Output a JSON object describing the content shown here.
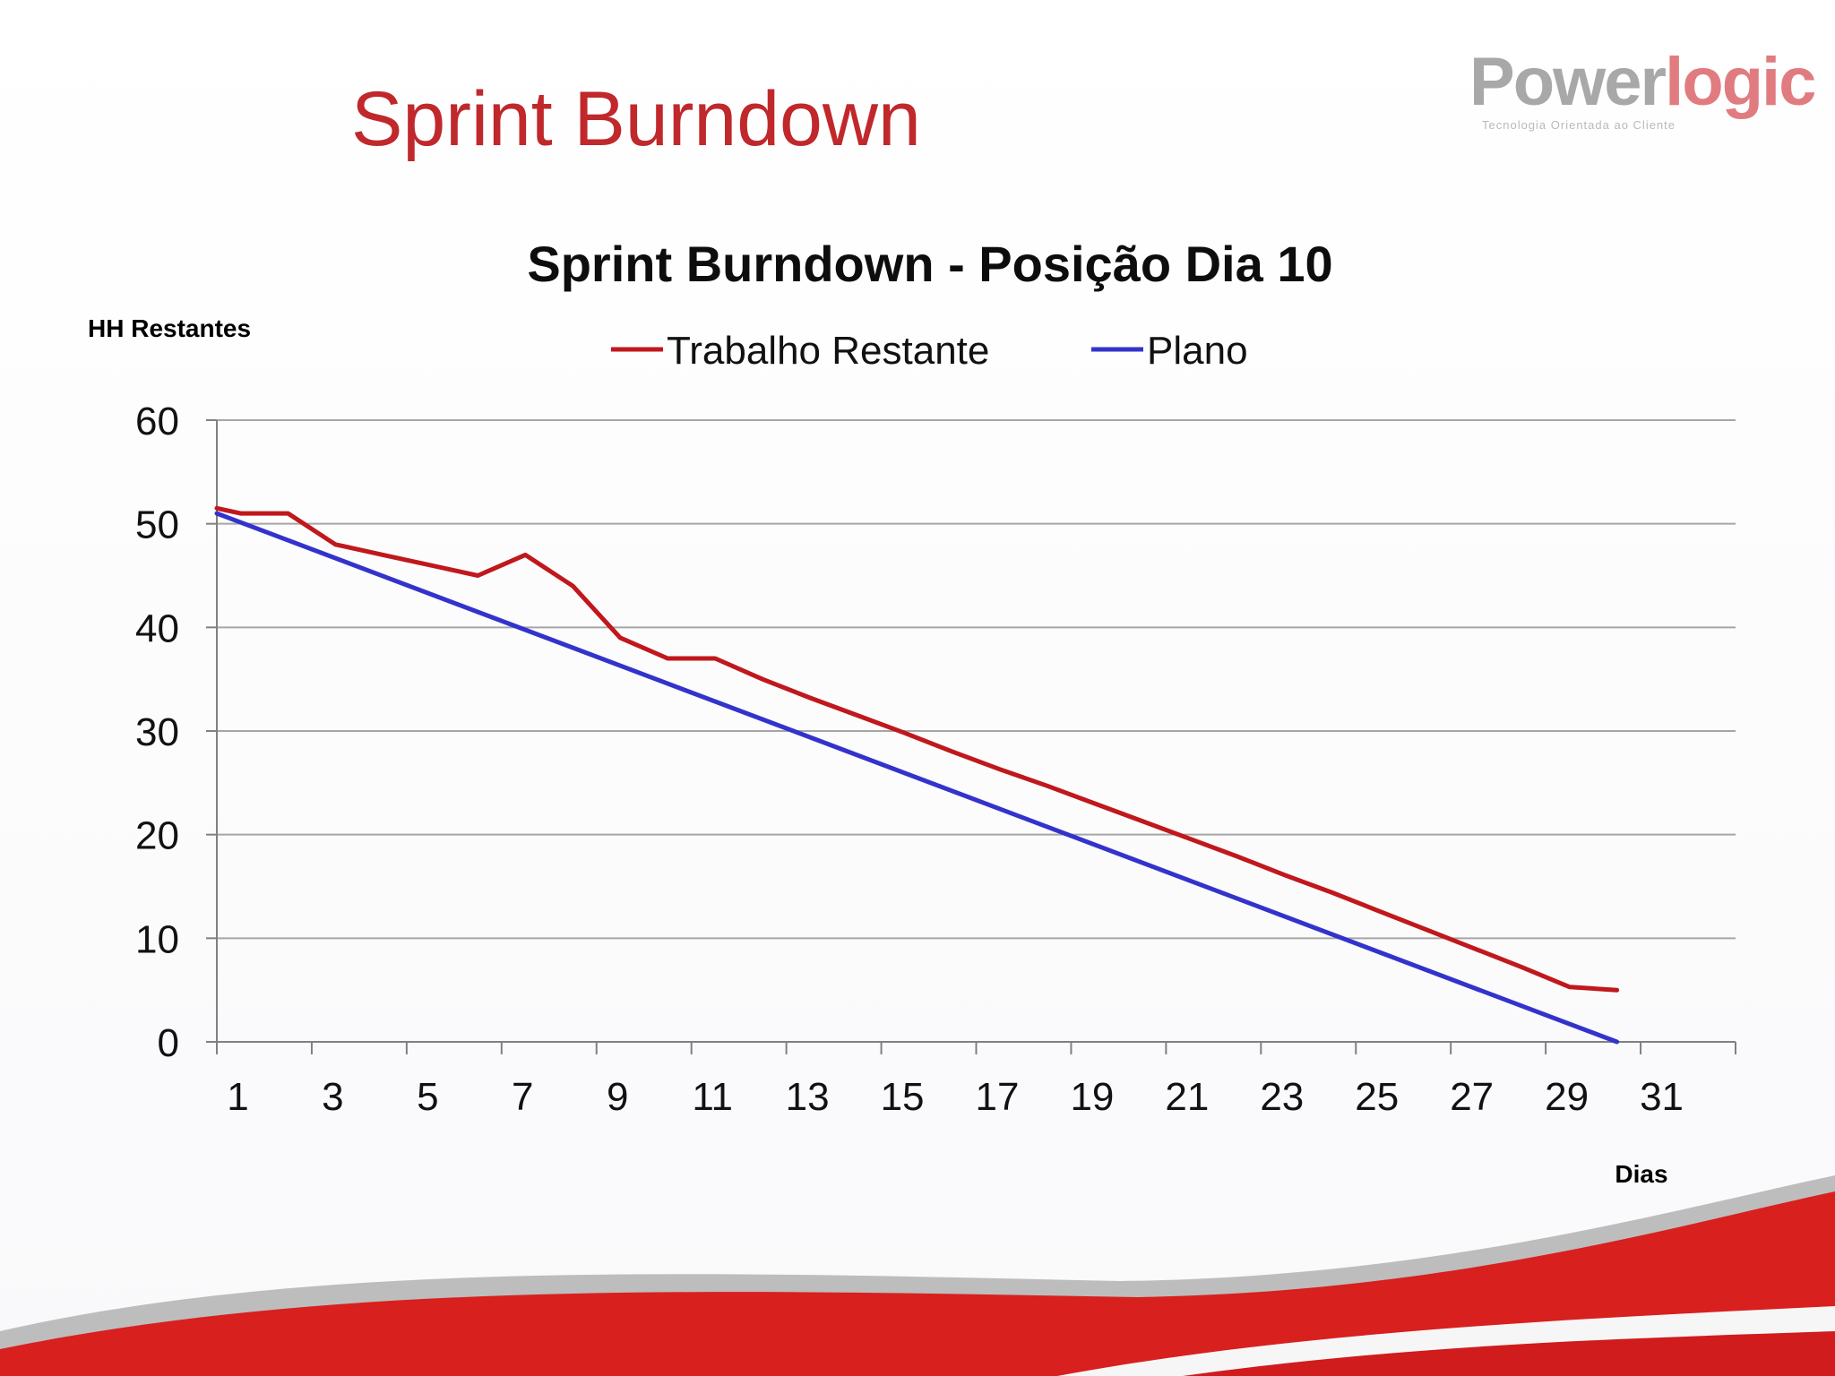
{
  "slide": {
    "title": "Sprint Burndown",
    "logo": {
      "word_part1": "Power",
      "word_part2": "logic",
      "tagline": "Tecnologia Orientada ao Cliente"
    }
  },
  "colors": {
    "title_red": "#c0282b",
    "series_actual": "#c0181c",
    "series_plan": "#3333cc",
    "grid": "#a6a6a6",
    "swoosh_red": "#d91f1f",
    "swoosh_grey": "#b8b8b8"
  },
  "chart_data": {
    "type": "line",
    "title": "Sprint Burndown - Posição Dia 10",
    "ylabel": "HH Restantes",
    "xlabel": "Dias",
    "ylim": [
      0,
      60
    ],
    "yticks": [
      0,
      10,
      20,
      30,
      40,
      50,
      60
    ],
    "xlim": [
      0.5,
      32.5
    ],
    "xticks": [
      1,
      3,
      5,
      7,
      9,
      11,
      13,
      15,
      17,
      19,
      21,
      23,
      25,
      27,
      29,
      31
    ],
    "grid": true,
    "legend_position": "top-center",
    "series": [
      {
        "name": "Trabalho Restante",
        "color": "#c0181c",
        "x": [
          0.5,
          1,
          2,
          3,
          4,
          5,
          6,
          7,
          8,
          9,
          10,
          11,
          12,
          13,
          14,
          15,
          16,
          17,
          18,
          19,
          20,
          21,
          22,
          23,
          24,
          25,
          26,
          27,
          28,
          29,
          30
        ],
        "values": [
          51.5,
          51,
          51,
          48,
          47,
          46,
          45,
          47,
          44,
          39,
          37,
          37,
          35,
          33.2,
          31.5,
          29.8,
          28,
          26.3,
          24.7,
          23,
          21.3,
          19.6,
          17.9,
          16.1,
          14.4,
          12.6,
          10.8,
          9,
          7.2,
          5.3,
          5
        ]
      },
      {
        "name": "Plano",
        "color": "#3333cc",
        "x": [
          0.5,
          30
        ],
        "values": [
          51,
          0
        ]
      }
    ]
  }
}
